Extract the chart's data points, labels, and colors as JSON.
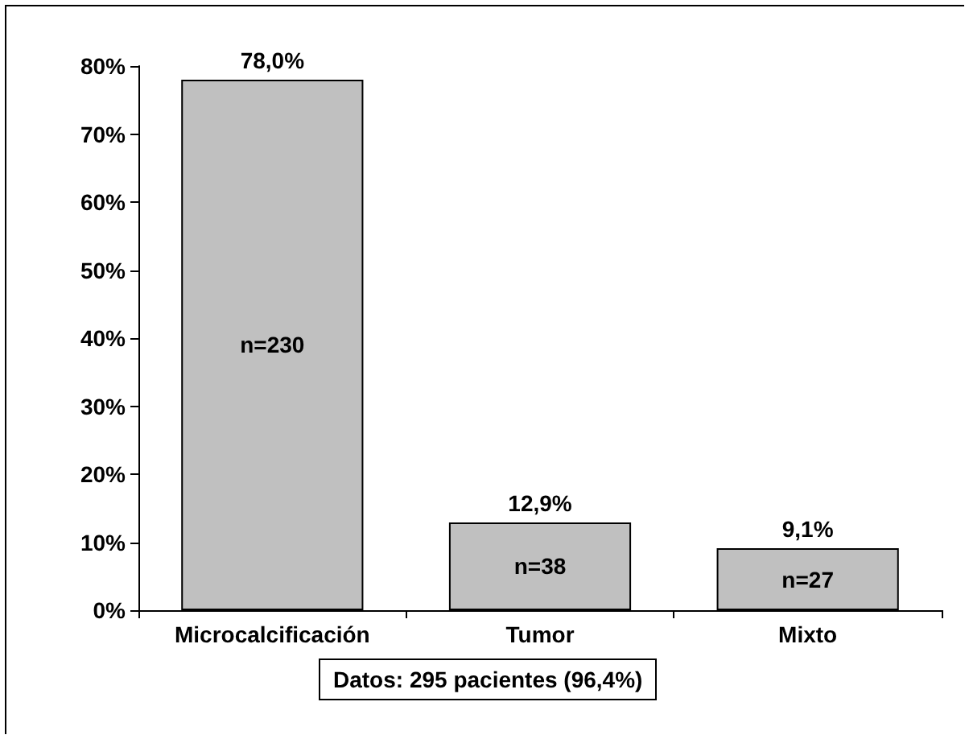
{
  "chart_data": {
    "type": "bar",
    "categories": [
      "Microcalcificación",
      "Tumor",
      "Mixto"
    ],
    "values": [
      78.0,
      12.9,
      9.1
    ],
    "value_labels": [
      "78,0%",
      "12,9%",
      "9,1%"
    ],
    "color": "#c0c0c0",
    "ylim": [
      0,
      80
    ],
    "yticks": [
      {
        "value": 0,
        "label": "0%"
      },
      {
        "value": 10,
        "label": "10%"
      },
      {
        "value": 20,
        "label": "20%"
      },
      {
        "value": 30,
        "label": "30%"
      },
      {
        "value": 40,
        "label": "40%"
      },
      {
        "value": 50,
        "label": "50%"
      },
      {
        "value": 60,
        "label": "60%"
      },
      {
        "value": 70,
        "label": "70%"
      },
      {
        "value": 80,
        "label": "80%"
      }
    ],
    "grid": false,
    "annotations": [
      "n=230",
      "n=38",
      "n=27",
      "Datos: 295 pacientes (96,4%)"
    ]
  }
}
